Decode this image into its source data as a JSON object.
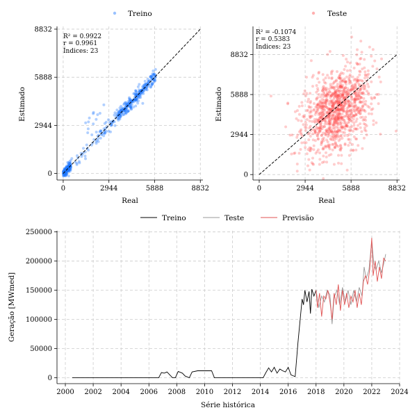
{
  "chart_data": [
    {
      "type": "scatter",
      "series": [
        {
          "name": "Treino"
        }
      ],
      "xlabel": "Real",
      "ylabel": "Estimado",
      "xlim": [
        -400,
        9000
      ],
      "ylim": [
        -400,
        9000
      ],
      "xticks": [
        "0",
        "2944",
        "5888",
        "8832"
      ],
      "yticks": [
        "0",
        "2944",
        "5888",
        "8832"
      ],
      "identity_line": [
        [
          0,
          0
        ],
        [
          8832,
          8832
        ]
      ],
      "annotations": [
        "R² = 0.9922",
        "r = 0.9961",
        "Índices: 23"
      ],
      "point_color": "#1f77ff",
      "grid": true,
      "legend": "top-center"
    },
    {
      "type": "scatter",
      "series": [
        {
          "name": "Teste"
        }
      ],
      "xlabel": "Real",
      "ylabel": "Estimado",
      "xlim": [
        -400,
        9000
      ],
      "ylim": [
        -400,
        10900
      ],
      "xticks": [
        "0",
        "2944",
        "5888",
        "8832"
      ],
      "yticks": [
        "0",
        "2944",
        "5888",
        "8832"
      ],
      "identity_line": [
        [
          0,
          0
        ],
        [
          8832,
          8832
        ]
      ],
      "annotations": [
        "R² = -0.1074",
        "r = 0.5383",
        "Índices: 23"
      ],
      "point_color": "#ff4d4d",
      "grid": true,
      "legend": "top-center"
    },
    {
      "type": "line",
      "xlabel": "Série histórica",
      "ylabel": "Geração [MWmed]",
      "xlim": [
        1999.4,
        2024.0
      ],
      "ylim": [
        -10000,
        252000
      ],
      "xticks": [
        "2000",
        "2002",
        "2004",
        "2006",
        "2008",
        "2010",
        "2012",
        "2014",
        "2016",
        "2018",
        "2020",
        "2022",
        "2024"
      ],
      "yticks": [
        "0",
        "50000",
        "100000",
        "150000",
        "200000",
        "250000"
      ],
      "grid": true,
      "legend": "top-center",
      "series": [
        {
          "name": "Treino",
          "color": "#000000",
          "points": [
            [
              2000.5,
              0
            ],
            [
              2006.7,
              0
            ],
            [
              2006.9,
              9000
            ],
            [
              2007.1,
              8000
            ],
            [
              2007.3,
              10000
            ],
            [
              2007.5,
              5000
            ],
            [
              2007.7,
              0
            ],
            [
              2007.9,
              0
            ],
            [
              2008.1,
              11000
            ],
            [
              2008.4,
              8000
            ],
            [
              2008.6,
              3000
            ],
            [
              2008.9,
              0
            ],
            [
              2009.1,
              10000
            ],
            [
              2009.5,
              12000
            ],
            [
              2010.0,
              12000
            ],
            [
              2010.5,
              12000
            ],
            [
              2010.7,
              0
            ],
            [
              2014.2,
              0
            ],
            [
              2014.4,
              9000
            ],
            [
              2014.6,
              17000
            ],
            [
              2014.8,
              10000
            ],
            [
              2015.0,
              18000
            ],
            [
              2015.2,
              8000
            ],
            [
              2015.4,
              15000
            ],
            [
              2015.6,
              12000
            ],
            [
              2015.8,
              10000
            ],
            [
              2016.0,
              18000
            ],
            [
              2016.2,
              5000
            ],
            [
              2016.5,
              2000
            ],
            [
              2016.7,
              60000
            ],
            [
              2016.9,
              110000
            ],
            [
              2017.0,
              135000
            ],
            [
              2017.1,
              125000
            ],
            [
              2017.2,
              150000
            ],
            [
              2017.35,
              130000
            ],
            [
              2017.5,
              148000
            ],
            [
              2017.6,
              110000
            ],
            [
              2017.7,
              152000
            ],
            [
              2017.85,
              140000
            ],
            [
              2018.0,
              150000
            ]
          ]
        },
        {
          "name": "Teste",
          "color": "#999999",
          "points": [
            [
              2018.0,
              150000
            ],
            [
              2018.2,
              120000
            ],
            [
              2018.4,
              140000
            ],
            [
              2018.6,
              130000
            ],
            [
              2018.8,
              150000
            ],
            [
              2019.0,
              142000
            ],
            [
              2019.15,
              92000
            ],
            [
              2019.3,
              138000
            ],
            [
              2019.5,
              150000
            ],
            [
              2019.7,
              125000
            ],
            [
              2019.9,
              155000
            ],
            [
              2020.1,
              130000
            ],
            [
              2020.3,
              150000
            ],
            [
              2020.5,
              125000
            ],
            [
              2020.7,
              150000
            ],
            [
              2020.9,
              130000
            ],
            [
              2021.1,
              155000
            ],
            [
              2021.3,
              140000
            ],
            [
              2021.45,
              190000
            ],
            [
              2021.6,
              170000
            ],
            [
              2021.8,
              185000
            ],
            [
              2022.0,
              235000
            ],
            [
              2022.15,
              195000
            ],
            [
              2022.3,
              185000
            ],
            [
              2022.5,
              200000
            ],
            [
              2022.7,
              180000
            ],
            [
              2022.85,
              195000
            ],
            [
              2023.0,
              212000
            ]
          ]
        },
        {
          "name": "Previsão",
          "color": "#e05252",
          "points": [
            [
              2018.0,
              150000
            ],
            [
              2018.1,
              120000
            ],
            [
              2018.25,
              145000
            ],
            [
              2018.4,
              105000
            ],
            [
              2018.55,
              140000
            ],
            [
              2018.7,
              135000
            ],
            [
              2018.85,
              150000
            ],
            [
              2019.0,
              130000
            ],
            [
              2019.15,
              100000
            ],
            [
              2019.3,
              145000
            ],
            [
              2019.45,
              125000
            ],
            [
              2019.6,
              160000
            ],
            [
              2019.75,
              115000
            ],
            [
              2019.9,
              150000
            ],
            [
              2020.05,
              125000
            ],
            [
              2020.2,
              145000
            ],
            [
              2020.35,
              120000
            ],
            [
              2020.5,
              140000
            ],
            [
              2020.65,
              130000
            ],
            [
              2020.8,
              150000
            ],
            [
              2020.95,
              120000
            ],
            [
              2021.1,
              145000
            ],
            [
              2021.25,
              125000
            ],
            [
              2021.4,
              165000
            ],
            [
              2021.55,
              175000
            ],
            [
              2021.7,
              160000
            ],
            [
              2021.85,
              185000
            ],
            [
              2022.0,
              240000
            ],
            [
              2022.1,
              175000
            ],
            [
              2022.25,
              200000
            ],
            [
              2022.4,
              165000
            ],
            [
              2022.55,
              190000
            ],
            [
              2022.7,
              170000
            ],
            [
              2022.85,
              205000
            ],
            [
              2023.0,
              200000
            ]
          ]
        }
      ]
    }
  ]
}
